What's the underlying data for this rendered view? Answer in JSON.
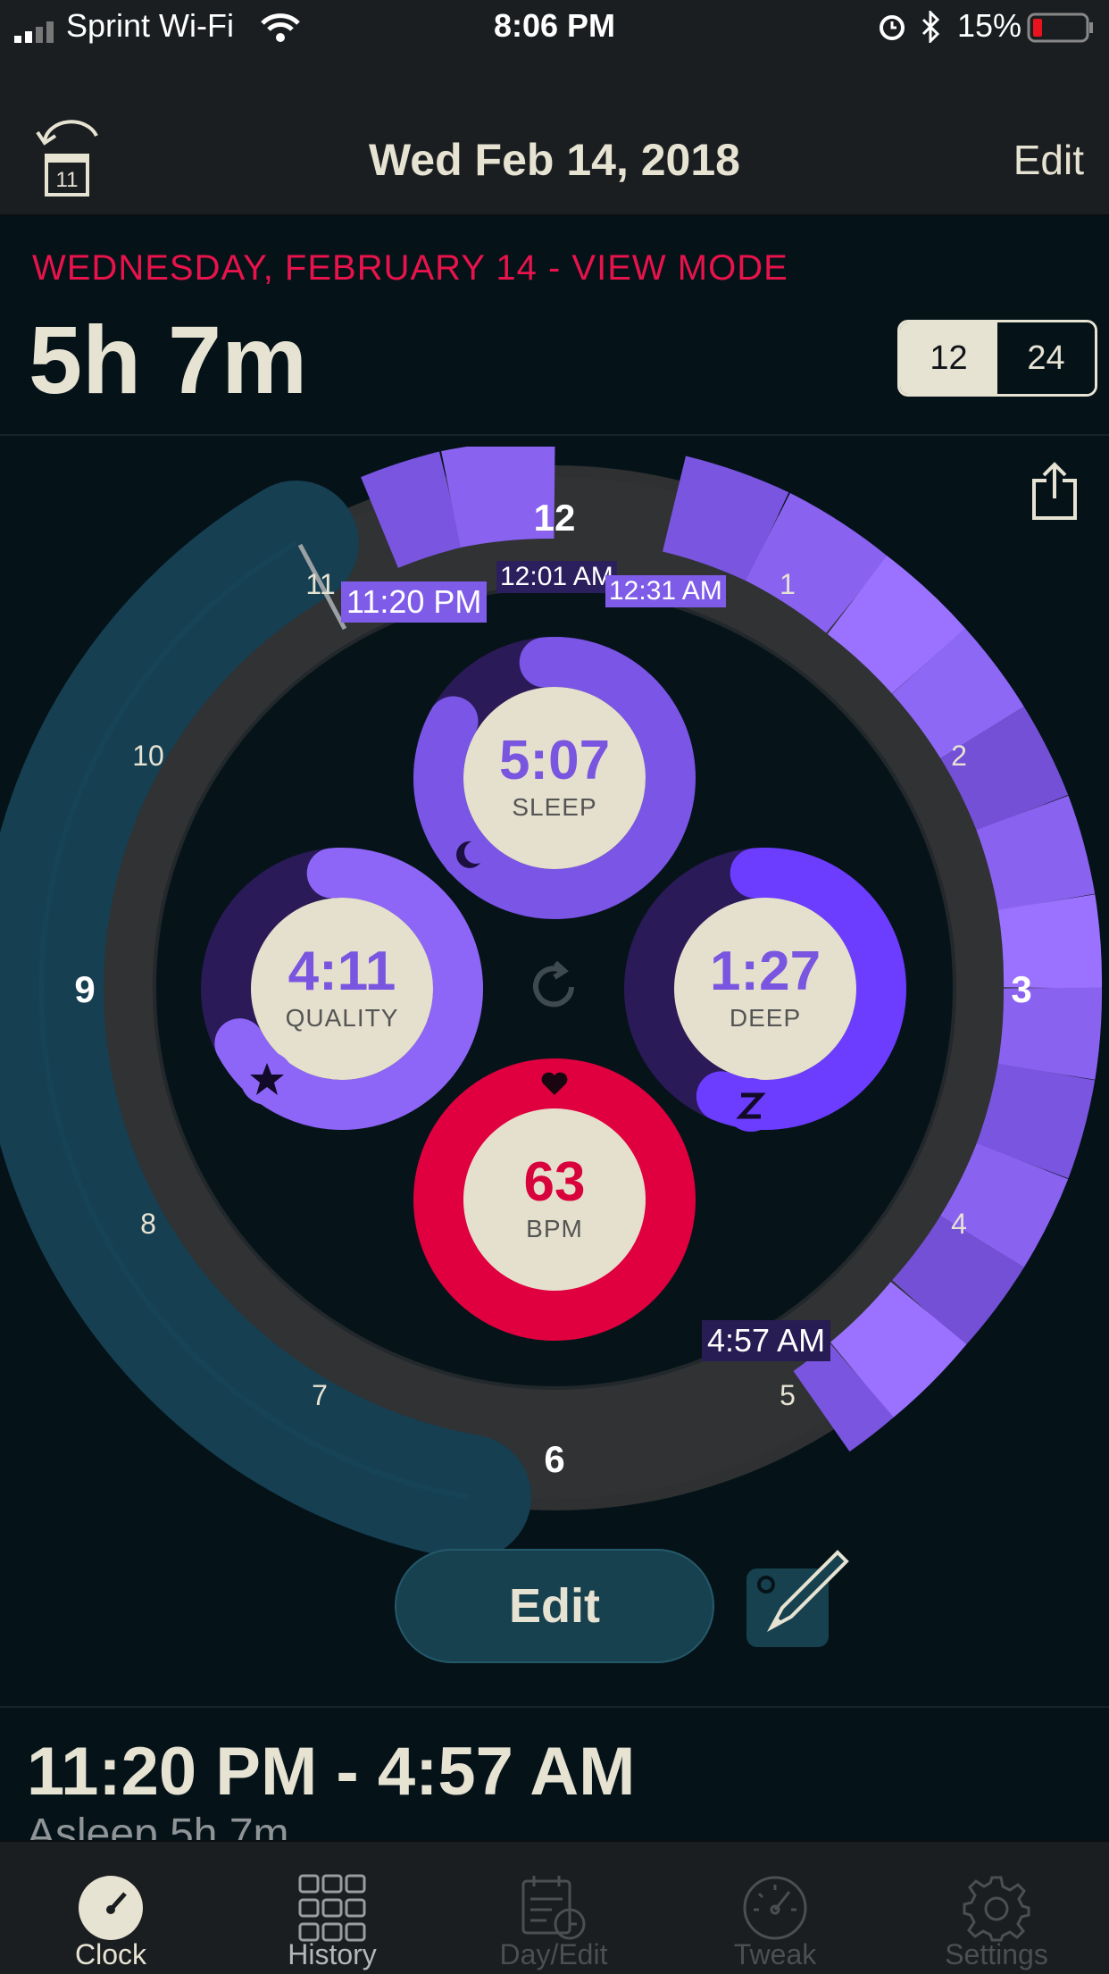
{
  "status_bar": {
    "carrier": "Sprint Wi-Fi",
    "time": "8:06 PM",
    "battery": "15%"
  },
  "nav": {
    "title": "Wed Feb 14, 2018",
    "edit_label": "Edit",
    "calendar_day": "11"
  },
  "header": {
    "mode_text": "WEDNESDAY, FEBRUARY 14 - VIEW MODE",
    "total_sleep": "5h 7m",
    "format_options": [
      "12",
      "24"
    ],
    "selected_format": "12"
  },
  "clock": {
    "hour_labels": {
      "h12": "12",
      "h1": "1",
      "h2": "2",
      "h3": "3",
      "h4": "4",
      "h5": "5",
      "h6": "6",
      "h7": "7",
      "h8": "8",
      "h9": "9",
      "h10": "10",
      "h11": "11"
    },
    "time_tags": {
      "sleep_start": "11:20 PM",
      "tag_1201": "12:01 AM",
      "tag_1231": "12:31 AM",
      "wake": "4:57 AM"
    },
    "sleep": {
      "value": "5:07",
      "label": "SLEEP"
    },
    "quality": {
      "value": "4:11",
      "label": "QUALITY"
    },
    "deep": {
      "value": "1:27",
      "label": "DEEP"
    },
    "heart": {
      "value": "63",
      "label": "BPM"
    }
  },
  "colors": {
    "purple": "#7b5ce6",
    "purple_light": "#9670f5",
    "teal": "#163f52",
    "heart_red": "#e0003f",
    "cream": "#e5e0cd"
  },
  "actions": {
    "edit_label": "Edit"
  },
  "summary": {
    "range": "11:20 PM - 4:57 AM",
    "asleep": "Asleep 5h 7m"
  },
  "tabs": [
    {
      "label": "Clock",
      "active": true
    },
    {
      "label": "History",
      "active": false
    },
    {
      "label": "Day/Edit",
      "active": false
    },
    {
      "label": "Tweak",
      "active": false
    },
    {
      "label": "Settings",
      "active": false
    }
  ]
}
